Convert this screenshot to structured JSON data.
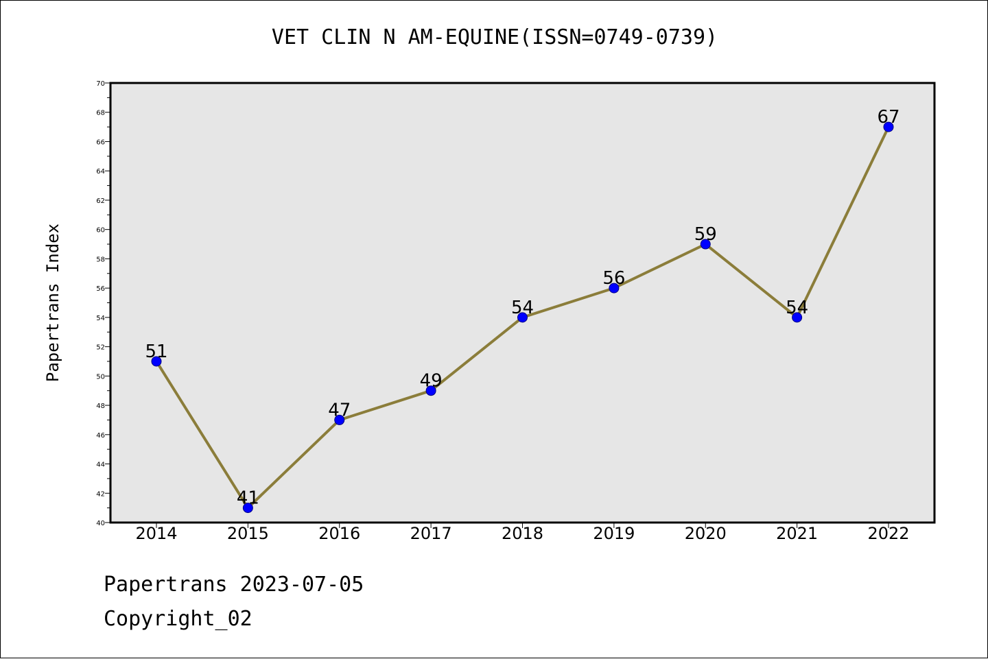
{
  "footer": {
    "date_line": "Papertrans 2023-07-05",
    "copyright_line": "Copyright_02"
  },
  "colors": {
    "plot_background": "#e6e6e6",
    "line": "#8b7d3a",
    "marker": "#0000ff",
    "marker_edge": "#000080",
    "axis": "#000000"
  },
  "chart_data": {
    "type": "line",
    "title": "VET CLIN N AM-EQUINE(ISSN=0749-0739)",
    "xlabel": "",
    "ylabel": "Papertrans Index",
    "categories": [
      "2014",
      "2015",
      "2016",
      "2017",
      "2018",
      "2019",
      "2020",
      "2021",
      "2022"
    ],
    "series": [
      {
        "values": [
          51,
          41,
          47,
          49,
          54,
          56,
          59,
          54,
          67
        ],
        "data_labels": [
          "51",
          "41",
          "47",
          "49",
          "54",
          "56",
          "59",
          "54",
          "67"
        ]
      }
    ],
    "ylim": [
      40,
      70
    ],
    "yticks": [
      "40",
      "42",
      "44",
      "46",
      "48",
      "50",
      "52",
      "54",
      "56",
      "58",
      "60",
      "62",
      "64",
      "66",
      "68",
      "70"
    ],
    "grid": false,
    "legend": "none"
  }
}
